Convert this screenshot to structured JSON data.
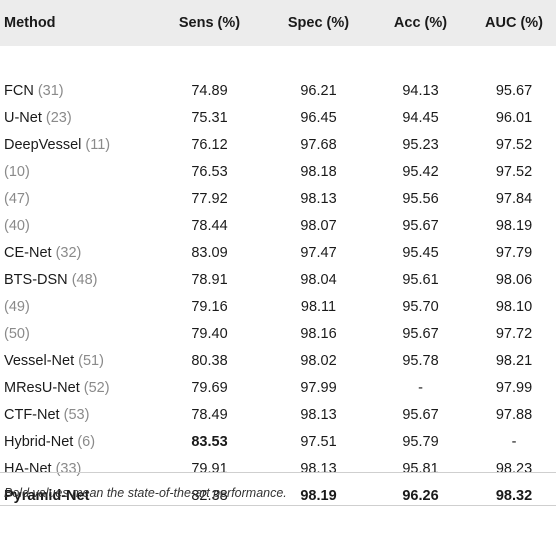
{
  "headers": [
    "Method",
    "Sens (%)",
    "Spec (%)",
    "Acc (%)",
    "AUC (%)"
  ],
  "rows": [
    {
      "name": "FCN",
      "ref": "(31)",
      "sens": "74.89",
      "spec": "96.21",
      "acc": "94.13",
      "auc": "95.67"
    },
    {
      "name": "U-Net",
      "ref": "(23)",
      "sens": "75.31",
      "spec": "96.45",
      "acc": "94.45",
      "auc": "96.01"
    },
    {
      "name": "DeepVessel",
      "ref": "(11)",
      "sens": "76.12",
      "spec": "97.68",
      "acc": "95.23",
      "auc": "97.52"
    },
    {
      "name": "",
      "ref": "(10)",
      "sens": "76.53",
      "spec": "98.18",
      "acc": "95.42",
      "auc": "97.52"
    },
    {
      "name": "",
      "ref": "(47)",
      "sens": "77.92",
      "spec": "98.13",
      "acc": "95.56",
      "auc": "97.84"
    },
    {
      "name": "",
      "ref": "(40)",
      "sens": "78.44",
      "spec": "98.07",
      "acc": "95.67",
      "auc": "98.19"
    },
    {
      "name": "CE-Net",
      "ref": "(32)",
      "sens": "83.09",
      "spec": "97.47",
      "acc": "95.45",
      "auc": "97.79"
    },
    {
      "name": "BTS-DSN",
      "ref": "(48)",
      "sens": "78.91",
      "spec": "98.04",
      "acc": "95.61",
      "auc": "98.06"
    },
    {
      "name": "",
      "ref": "(49)",
      "sens": "79.16",
      "spec": "98.11",
      "acc": "95.70",
      "auc": "98.10"
    },
    {
      "name": "",
      "ref": "(50)",
      "sens": "79.40",
      "spec": "98.16",
      "acc": "95.67",
      "auc": "97.72"
    },
    {
      "name": "Vessel-Net",
      "ref": "(51)",
      "sens": "80.38",
      "spec": "98.02",
      "acc": "95.78",
      "auc": "98.21"
    },
    {
      "name": "MResU-Net",
      "ref": "(52)",
      "sens": "79.69",
      "spec": "97.99",
      "acc": "-",
      "auc": "97.99"
    },
    {
      "name": "CTF-Net",
      "ref": "(53)",
      "sens": "78.49",
      "spec": "98.13",
      "acc": "95.67",
      "auc": "97.88"
    },
    {
      "name": "Hybrid-Net",
      "ref": "(6)",
      "sens": "83.53",
      "spec": "97.51",
      "acc": "95.79",
      "auc": "-",
      "bold": [
        "sens"
      ]
    },
    {
      "name": "HA-Net",
      "ref": "(33)",
      "sens": "79.91",
      "spec": "98.13",
      "acc": "95.81",
      "auc": "98.23"
    },
    {
      "name": "Pyramid-Net",
      "ref": "",
      "sens": "82.38",
      "spec": "98.19",
      "acc": "96.26",
      "auc": "98.32",
      "bold": [
        "name",
        "spec",
        "acc",
        "auc"
      ]
    }
  ],
  "footnote": "Bold values mean the state-of-the-art performance."
}
